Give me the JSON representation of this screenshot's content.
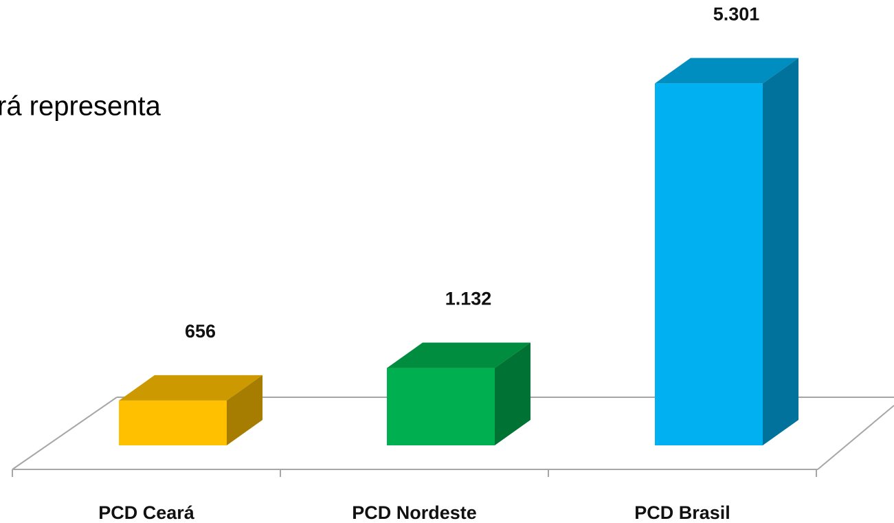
{
  "text": "rá representa",
  "chart_data": {
    "type": "bar3d",
    "categories": [
      "PCD Ceará",
      "PCD Nordeste",
      "PCD Brasil"
    ],
    "values": [
      656,
      1132,
      5301
    ],
    "value_labels": [
      "656",
      "1.132",
      "5.301"
    ],
    "colors": [
      "#FFC000",
      "#00B050",
      "#00B0F0"
    ],
    "ylim": [
      0,
      6000
    ]
  }
}
